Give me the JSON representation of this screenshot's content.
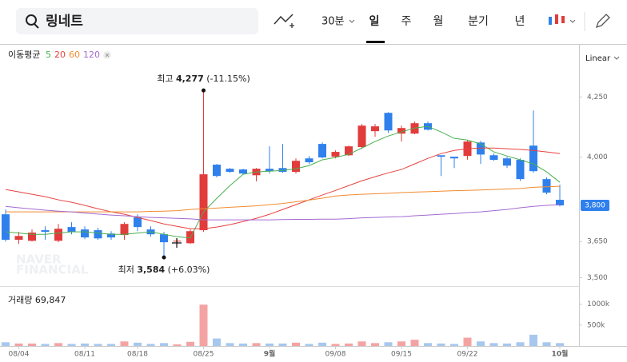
{
  "search": {
    "query": "링네트"
  },
  "toolbar": {
    "interval": "30분",
    "periods": [
      "일",
      "주",
      "월",
      "분기",
      "년"
    ]
  },
  "chart_data": {
    "type": "candlestick",
    "ma_label": "이동평균",
    "scale_label": "Linear",
    "watermark": [
      "NAVER",
      "FINANCIAL"
    ],
    "categories": [
      null,
      "08/04",
      null,
      null,
      null,
      null,
      "08/11",
      null,
      null,
      null,
      "08/18",
      null,
      null,
      null,
      null,
      "08/25",
      null,
      null,
      null,
      null,
      "9월",
      null,
      null,
      null,
      null,
      "09/08",
      null,
      null,
      null,
      null,
      "09/15",
      null,
      null,
      null,
      null,
      "09/22",
      null,
      null,
      null,
      null,
      null,
      null,
      "10월"
    ],
    "up_color": "#e23b3b",
    "down_color": "#2f80ed",
    "open": [
      3763,
      3657,
      3653,
      3697,
      3653,
      3710,
      3700,
      3697,
      3683,
      3677,
      3750,
      3700,
      3680,
      3650,
      3643,
      3697,
      3969,
      3952,
      3949,
      3925,
      3952,
      3955,
      3939,
      3995,
      4055,
      4002,
      4008,
      4042,
      4108,
      4184,
      4098,
      4098,
      4141,
      4008,
      4002,
      4005,
      4061,
      4008,
      3995,
      3989,
      4048,
      3909,
      3823
    ],
    "high": [
      3783,
      3690,
      3700,
      3713,
      3723,
      3730,
      3713,
      3707,
      3693,
      3730,
      3763,
      3713,
      3690,
      3660,
      3700,
      4277,
      3972,
      3955,
      3952,
      3955,
      4045,
      4055,
      3995,
      4005,
      4061,
      4028,
      4048,
      4138,
      4138,
      4187,
      4131,
      4148,
      4148,
      4008,
      4002,
      4070,
      4068,
      4015,
      4002,
      3995,
      4194,
      3916,
      3886
    ],
    "low": [
      3650,
      3640,
      3650,
      3657,
      3647,
      3680,
      3660,
      3657,
      3657,
      3657,
      3693,
      3670,
      3584,
      3640,
      3640,
      3690,
      3916,
      3935,
      3929,
      3900,
      3932,
      3935,
      3932,
      3972,
      3995,
      3995,
      4005,
      4035,
      4085,
      4101,
      4065,
      4095,
      4111,
      3922,
      3955,
      3990,
      3972,
      3985,
      3955,
      3902,
      3935,
      3846,
      3796
    ],
    "close": [
      3657,
      3673,
      3687,
      3690,
      3703,
      3690,
      3667,
      3663,
      3667,
      3723,
      3710,
      3680,
      3647,
      3653,
      3693,
      3929,
      3922,
      3939,
      3932,
      3952,
      3942,
      3939,
      3985,
      3979,
      3999,
      4022,
      4045,
      4131,
      4128,
      4111,
      4121,
      4141,
      4114,
      4002,
      3995,
      4065,
      4011,
      3989,
      3965,
      3909,
      3942,
      3853,
      3800
    ],
    "series": [
      {
        "name": "5",
        "color": "#4caf50",
        "values": [
          3690,
          3685,
          3680,
          3680,
          3685,
          3690,
          3690,
          3685,
          3680,
          3680,
          3685,
          3690,
          3680,
          3670,
          3665,
          3773,
          3829,
          3882,
          3929,
          3939,
          3942,
          3945,
          3952,
          3965,
          3989,
          3999,
          4012,
          4038,
          4065,
          4088,
          4105,
          4121,
          4128,
          4105,
          4078,
          4071,
          4055,
          4022,
          4005,
          3989,
          3972,
          3939,
          3896
        ]
      },
      {
        "name": "20",
        "color": "#e8423f",
        "values": [
          3866,
          3856,
          3846,
          3836,
          3823,
          3813,
          3800,
          3786,
          3773,
          3763,
          3750,
          3737,
          3723,
          3713,
          3703,
          3703,
          3710,
          3720,
          3733,
          3746,
          3763,
          3783,
          3803,
          3823,
          3843,
          3862,
          3882,
          3902,
          3919,
          3935,
          3949,
          3972,
          3995,
          4015,
          4028,
          4035,
          4038,
          4038,
          4035,
          4032,
          4028,
          4022,
          4015
        ]
      },
      {
        "name": "60",
        "color": "#f28b30",
        "values": [
          3773,
          3773,
          3773,
          3773,
          3773,
          3773,
          3773,
          3773,
          3773,
          3773,
          3773,
          3775,
          3776,
          3778,
          3783,
          3786,
          3789,
          3792,
          3795,
          3798,
          3803,
          3808,
          3815,
          3822,
          3830,
          3839,
          3843,
          3846,
          3848,
          3850,
          3853,
          3855,
          3857,
          3859,
          3861,
          3862,
          3864,
          3866,
          3868,
          3870,
          3875,
          3877,
          3879
        ]
      },
      {
        "name": "120",
        "color": "#a36ad1",
        "values": [
          3796,
          3790,
          3785,
          3780,
          3776,
          3773,
          3768,
          3764,
          3760,
          3757,
          3753,
          3750,
          3748,
          3746,
          3744,
          3740,
          3740,
          3740,
          3740,
          3740,
          3740,
          3741,
          3742,
          3742,
          3743,
          3743,
          3745,
          3748,
          3750,
          3752,
          3753,
          3757,
          3760,
          3763,
          3766,
          3770,
          3773,
          3778,
          3783,
          3790,
          3796,
          3800,
          3803
        ]
      }
    ],
    "ylim": [
      3475,
      4460
    ],
    "yticks": [
      {
        "value": 4250,
        "label": "4,250"
      },
      {
        "value": 4000,
        "label": "4,000"
      },
      {
        "value": 3650,
        "label": "3,650"
      },
      {
        "value": 3500,
        "label": "3,500"
      }
    ],
    "current_price": {
      "value": 3800,
      "label": "3,800"
    },
    "high_annotation": {
      "label": "최고",
      "value": 4277,
      "value_label": "4,277",
      "change": "(-11.15%)"
    },
    "low_annotation": {
      "label": "최저",
      "value": 3584,
      "value_label": "3,584",
      "change": "(+6.03%)"
    },
    "volume": {
      "title": "거래량",
      "up_color": "#f4a3a3",
      "down_color": "#a7c7ee",
      "values": [
        90000,
        60000,
        60000,
        50000,
        70000,
        50000,
        60000,
        50000,
        50000,
        110000,
        80000,
        50000,
        70000,
        40000,
        100000,
        990000,
        180000,
        70000,
        60000,
        70000,
        60000,
        60000,
        80000,
        50000,
        80000,
        50000,
        60000,
        110000,
        70000,
        90000,
        110000,
        150000,
        70000,
        60000,
        50000,
        200000,
        110000,
        70000,
        60000,
        90000,
        270000,
        90000,
        69847
      ],
      "current": {
        "value": 69847,
        "label": "69,847"
      },
      "ylim": [
        0,
        1300000
      ],
      "yticks": [
        {
          "value": 500000,
          "label": "500k"
        },
        {
          "value": 1000000,
          "label": "1000k"
        }
      ]
    }
  }
}
